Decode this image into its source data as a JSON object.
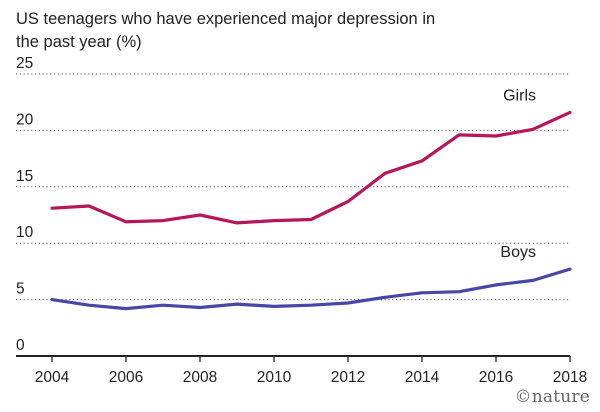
{
  "chart_data": {
    "type": "line",
    "title": "US teenagers who have experienced major depression in the past year (%)",
    "xlabel": "",
    "ylabel": "",
    "x": [
      2004,
      2005,
      2006,
      2007,
      2008,
      2009,
      2010,
      2011,
      2012,
      2013,
      2014,
      2015,
      2016,
      2017,
      2018
    ],
    "xlim": [
      2004,
      2018
    ],
    "ylim": [
      0,
      25
    ],
    "x_ticks": [
      "2004",
      "2006",
      "2008",
      "2010",
      "2012",
      "2014",
      "2016",
      "2018"
    ],
    "y_ticks": [
      "0",
      "5",
      "10",
      "15",
      "20",
      "25"
    ],
    "grid": "horizontal dotted",
    "series": [
      {
        "name": "Girls",
        "color": "#b5175a",
        "values": [
          13.1,
          13.3,
          11.9,
          12.0,
          12.5,
          11.8,
          12.0,
          12.1,
          13.7,
          16.2,
          17.3,
          19.6,
          19.5,
          20.1,
          21.6
        ]
      },
      {
        "name": "Boys",
        "color": "#4747a8",
        "values": [
          5.0,
          4.5,
          4.2,
          4.5,
          4.3,
          4.6,
          4.4,
          4.5,
          4.7,
          5.2,
          5.6,
          5.7,
          6.3,
          6.7,
          7.7
        ]
      }
    ]
  },
  "credit": "©nature"
}
